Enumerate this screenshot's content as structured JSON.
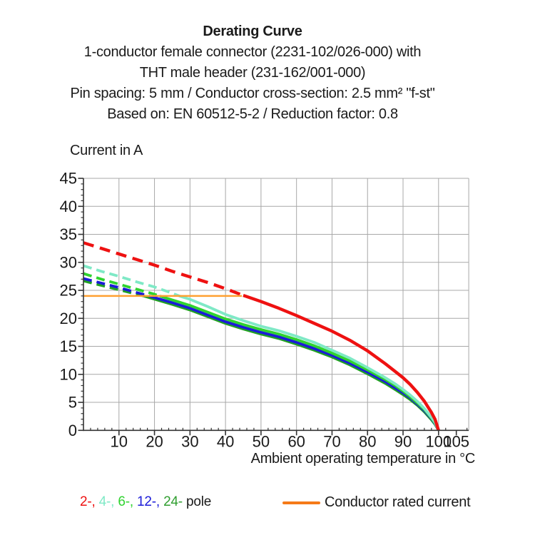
{
  "header": {
    "title": "Derating Curve",
    "line2": "1-conductor female connector (2231-102/026-000) with",
    "line3": "THT male header (231-162/001-000)",
    "line4": "Pin spacing: 5 mm / Conductor cross-section: 2.5 mm² \"f-st\"",
    "line5": "Based on: EN 60512-5-2 / Reduction factor: 0.8"
  },
  "axes": {
    "y_label": "Current in A",
    "x_label": "Ambient operating temperature in °C"
  },
  "legend": {
    "pole_items": [
      {
        "text": "2-,",
        "color": "#ee1111"
      },
      {
        "text": "4-,",
        "color": "#7fe9c6"
      },
      {
        "text": "6-,",
        "color": "#2fd32f"
      },
      {
        "text": "12-,",
        "color": "#1b1bd8"
      },
      {
        "text": "24-",
        "color": "#2f9e2f"
      }
    ],
    "pole_suffix": " pole",
    "rated_label": "Conductor rated current",
    "rated_swatch_color": "#f57a18"
  },
  "chart_data": {
    "type": "line",
    "title": "Derating Curve",
    "x_label": "Ambient operating temperature in °C",
    "y_label": "Current in A",
    "xlim": [
      0,
      108.5
    ],
    "ylim": [
      0,
      45
    ],
    "x_ticks": [
      10,
      20,
      30,
      40,
      50,
      60,
      70,
      80,
      90,
      100,
      105
    ],
    "y_ticks": [
      0,
      5,
      10,
      15,
      20,
      25,
      30,
      35,
      40,
      45
    ],
    "x_minor_step": 2,
    "y_minor_step": 1,
    "grid": true,
    "grid_color": "#a8a8a8",
    "axis_color": "#333333",
    "rated_current": {
      "label": "Conductor rated current",
      "value": 24,
      "x_start": 0,
      "x_end": 44.6,
      "color": "#ffa030"
    },
    "note": "dashed segments lie above the conductor rated current (24 A); solid segments below",
    "series": [
      {
        "name": "2-pole",
        "color": "#ee1111",
        "width": 4.4,
        "dash": [
          15,
          9
        ],
        "dashed": [
          [
            0,
            33.5
          ],
          [
            5,
            32.5
          ],
          [
            10,
            31.5
          ],
          [
            15,
            30.5
          ],
          [
            20,
            29.5
          ],
          [
            25,
            28.4
          ],
          [
            30,
            27.4
          ],
          [
            35,
            26.4
          ],
          [
            40,
            25.3
          ],
          [
            45,
            24.1
          ]
        ],
        "solid": [
          [
            45,
            24.1
          ],
          [
            50,
            23.0
          ],
          [
            55,
            21.8
          ],
          [
            60,
            20.5
          ],
          [
            65,
            19.1
          ],
          [
            70,
            17.7
          ],
          [
            75,
            16.1
          ],
          [
            80,
            14.2
          ],
          [
            85,
            11.9
          ],
          [
            88,
            10.4
          ],
          [
            90,
            9.4
          ],
          [
            92,
            8.2
          ],
          [
            94,
            6.8
          ],
          [
            96,
            5.2
          ],
          [
            98,
            3.2
          ],
          [
            99,
            2.0
          ],
          [
            100,
            0
          ]
        ]
      },
      {
        "name": "4-pole",
        "color": "#7fe9c6",
        "width": 3.8,
        "dash": [
          12,
          7
        ],
        "dashed": [
          [
            0,
            29.4
          ],
          [
            5,
            28.4
          ],
          [
            10,
            27.5
          ],
          [
            15,
            26.5
          ],
          [
            20,
            25.6
          ],
          [
            25,
            24.5
          ],
          [
            27,
            24.0
          ]
        ],
        "solid": [
          [
            27,
            24.0
          ],
          [
            30,
            23.4
          ],
          [
            35,
            22.1
          ],
          [
            40,
            20.7
          ],
          [
            45,
            19.6
          ],
          [
            50,
            18.6
          ],
          [
            55,
            17.8
          ],
          [
            60,
            16.8
          ],
          [
            65,
            15.7
          ],
          [
            70,
            14.3
          ],
          [
            75,
            12.9
          ],
          [
            80,
            11.2
          ],
          [
            85,
            9.4
          ],
          [
            88,
            8.2
          ],
          [
            90,
            7.3
          ],
          [
            92,
            6.3
          ],
          [
            94,
            5.2
          ],
          [
            96,
            3.9
          ],
          [
            98,
            2.3
          ],
          [
            99,
            1.4
          ],
          [
            100,
            0
          ]
        ]
      },
      {
        "name": "6-pole",
        "color": "#2fd32f",
        "width": 3.8,
        "dash": [
          12,
          7
        ],
        "dashed": [
          [
            0,
            28.0
          ],
          [
            5,
            27.0
          ],
          [
            10,
            26.1
          ],
          [
            15,
            25.2
          ],
          [
            20,
            24.3
          ],
          [
            21.5,
            24.0
          ]
        ],
        "solid": [
          [
            21.5,
            24.0
          ],
          [
            25,
            23.3
          ],
          [
            30,
            22.3
          ],
          [
            35,
            21.1
          ],
          [
            40,
            19.9
          ],
          [
            45,
            18.9
          ],
          [
            50,
            18.0
          ],
          [
            55,
            17.2
          ],
          [
            60,
            16.2
          ],
          [
            65,
            15.1
          ],
          [
            70,
            13.8
          ],
          [
            75,
            12.4
          ],
          [
            80,
            10.8
          ],
          [
            85,
            9.1
          ],
          [
            88,
            7.9
          ],
          [
            90,
            7.0
          ],
          [
            92,
            6.0
          ],
          [
            94,
            4.9
          ],
          [
            96,
            3.7
          ],
          [
            98,
            2.2
          ],
          [
            99,
            1.3
          ],
          [
            100,
            0
          ]
        ]
      },
      {
        "name": "12-pole",
        "color": "#1b1bd8",
        "width": 3.8,
        "dash": [
          12,
          7
        ],
        "dashed": [
          [
            0,
            27.1
          ],
          [
            5,
            26.3
          ],
          [
            10,
            25.5
          ],
          [
            15,
            24.6
          ],
          [
            18.5,
            24.0
          ]
        ],
        "solid": [
          [
            18.5,
            24.0
          ],
          [
            25,
            22.8
          ],
          [
            30,
            21.8
          ],
          [
            35,
            20.6
          ],
          [
            40,
            19.4
          ],
          [
            45,
            18.4
          ],
          [
            50,
            17.5
          ],
          [
            55,
            16.7
          ],
          [
            60,
            15.7
          ],
          [
            65,
            14.6
          ],
          [
            70,
            13.4
          ],
          [
            75,
            12.0
          ],
          [
            80,
            10.4
          ],
          [
            85,
            8.7
          ],
          [
            88,
            7.5
          ],
          [
            90,
            6.7
          ],
          [
            92,
            5.8
          ],
          [
            94,
            4.7
          ],
          [
            96,
            3.5
          ],
          [
            98,
            2.1
          ],
          [
            99,
            1.2
          ],
          [
            100,
            0
          ]
        ]
      },
      {
        "name": "24-pole",
        "color": "#22a122",
        "width": 3.8,
        "dash": [
          12,
          7
        ],
        "dashed": [
          [
            0,
            26.7
          ],
          [
            5,
            25.9
          ],
          [
            10,
            25.1
          ],
          [
            15,
            24.3
          ],
          [
            17,
            24.0
          ]
        ],
        "solid": [
          [
            17,
            24.0
          ],
          [
            25,
            22.5
          ],
          [
            30,
            21.5
          ],
          [
            35,
            20.3
          ],
          [
            40,
            19.1
          ],
          [
            45,
            18.1
          ],
          [
            50,
            17.2
          ],
          [
            55,
            16.4
          ],
          [
            60,
            15.4
          ],
          [
            65,
            14.3
          ],
          [
            70,
            13.1
          ],
          [
            75,
            11.7
          ],
          [
            80,
            10.1
          ],
          [
            85,
            8.4
          ],
          [
            88,
            7.2
          ],
          [
            90,
            6.4
          ],
          [
            92,
            5.5
          ],
          [
            94,
            4.5
          ],
          [
            96,
            3.3
          ],
          [
            98,
            1.9
          ],
          [
            99,
            1.1
          ],
          [
            100,
            0
          ]
        ]
      }
    ],
    "draw_order": [
      "24-pole",
      "12-pole",
      "6-pole",
      "4-pole",
      "2-pole"
    ],
    "legend_position": "bottom"
  }
}
